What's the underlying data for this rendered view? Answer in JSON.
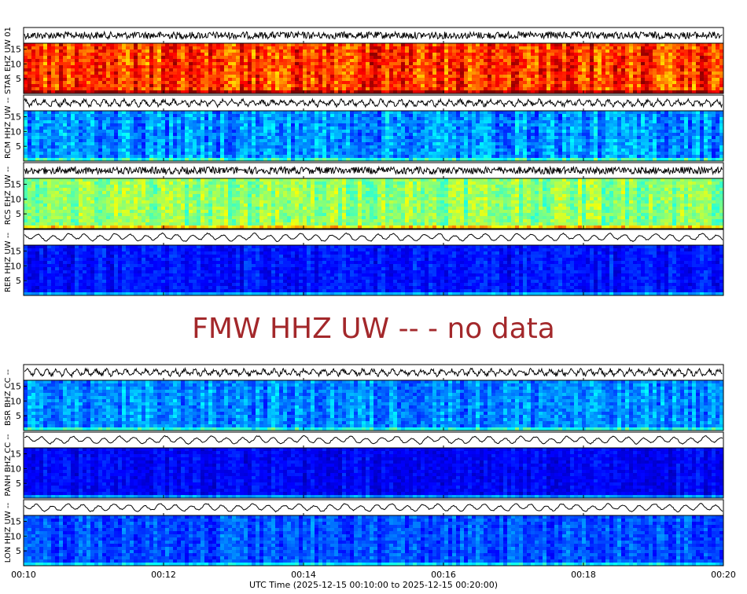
{
  "chart_data": {
    "type": "heatmap",
    "title": "",
    "xlabel": "UTC Time (2025-12-15 00:10:00 to 2025-12-15 00:20:00)",
    "x_ticks": [
      "00:10",
      "00:12",
      "00:14",
      "00:16",
      "00:18",
      "00:20"
    ],
    "y_ticks": [
      "5",
      "10",
      "15"
    ],
    "ylim": [
      0,
      17
    ],
    "colormap": "jet",
    "panels": [
      {
        "label": "STAR EHZ UW 01",
        "status": "data",
        "level": 0.82,
        "variation": 0.18,
        "wave": "noisy"
      },
      {
        "label": "RCM HHZ UW --",
        "status": "data",
        "level": 0.27,
        "variation": 0.14,
        "wave": "medium"
      },
      {
        "label": "RCS EHZ UW --",
        "status": "data",
        "level": 0.52,
        "variation": 0.12,
        "wave": "noisy"
      },
      {
        "label": "RER HHZ UW --",
        "status": "data",
        "level": 0.14,
        "variation": 0.08,
        "wave": "smooth"
      },
      {
        "label": "FMW HHZ UW -- - no data",
        "status": "no data"
      },
      {
        "label": "BSR BHZ CC --",
        "status": "data",
        "level": 0.26,
        "variation": 0.12,
        "wave": "medium"
      },
      {
        "label": "PANH BHZ CC --",
        "status": "data",
        "level": 0.12,
        "variation": 0.07,
        "wave": "smooth"
      },
      {
        "label": "LON HHZ UW --",
        "status": "data",
        "level": 0.2,
        "variation": 0.1,
        "wave": "smooth"
      }
    ]
  },
  "colors": {
    "no_data_text": "#a3282b",
    "waveform": "#000000",
    "background": "#ffffff"
  }
}
